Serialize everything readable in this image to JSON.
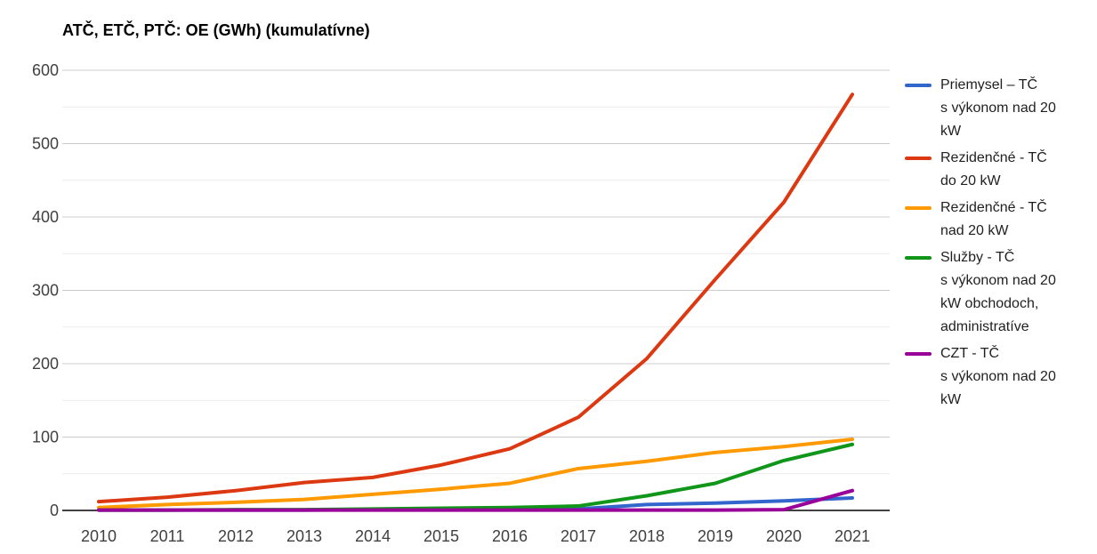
{
  "title": "ATČ, ETČ, PTČ: OE (GWh) (kumulatívne)",
  "chart_data": {
    "type": "line",
    "x": [
      2010,
      2011,
      2012,
      2013,
      2014,
      2015,
      2016,
      2017,
      2018,
      2019,
      2020,
      2021
    ],
    "series": [
      {
        "name": "Priemysel – TČ s výkonom nad 20 kW",
        "legend_label": "Priemysel – TČ\ns výkonom nad 20\nkW",
        "color": "#3366CC",
        "values": [
          0.5,
          0.5,
          0.5,
          0.5,
          1,
          1,
          1,
          2,
          8,
          10,
          13,
          17
        ]
      },
      {
        "name": "Rezidenčné -  TČ do 20 kW",
        "legend_label": "Rezidenčné -  TČ\ndo 20 kW",
        "color": "#DC3912",
        "values": [
          12,
          18,
          27,
          38,
          45,
          62,
          84,
          127,
          207,
          315,
          420,
          567
        ]
      },
      {
        "name": "Rezidenčné -  TČ nad 20 kW",
        "legend_label": "Rezidenčné -  TČ\nnad 20 kW",
        "color": "#FF9900",
        "values": [
          4,
          8,
          11,
          15,
          22,
          29,
          37,
          57,
          67,
          79,
          87,
          97
        ]
      },
      {
        "name": "Služby - TČ s výkonom nad 20 kW obchodoch, administratíve",
        "legend_label": "Služby - TČ\ns výkonom nad 20\nkW obchodoch,\nadministratíve",
        "color": "#109618",
        "values": [
          0.5,
          0.5,
          1,
          1,
          2,
          3,
          4,
          6,
          20,
          37,
          68,
          90
        ]
      },
      {
        "name": "CZT - TČ s výkonom nad 20 kW",
        "legend_label": "CZT - TČ\ns výkonom nad 20\nkW",
        "color": "#990099",
        "values": [
          0.5,
          0.5,
          0.5,
          0.5,
          0.5,
          0.5,
          0.5,
          0.5,
          0.5,
          0.5,
          1,
          27
        ]
      }
    ],
    "title": "ATČ, ETČ, PTČ: OE (GWh) (kumulatívne)",
    "xlabel": "",
    "ylabel": "",
    "ylim": [
      0,
      600
    ],
    "y_ticks": [
      0,
      100,
      200,
      300,
      400,
      500,
      600
    ],
    "minor_gridline_step": 50,
    "grid": true,
    "legend_position": "right"
  },
  "colors": {
    "background": "#ffffff",
    "axis_line": "#424242",
    "major_gridline": "#cccccc",
    "minor_gridline": "#ebebeb",
    "tick_label": "#404040",
    "title_text": "#000000",
    "legend_text": "#1f1f1f"
  }
}
